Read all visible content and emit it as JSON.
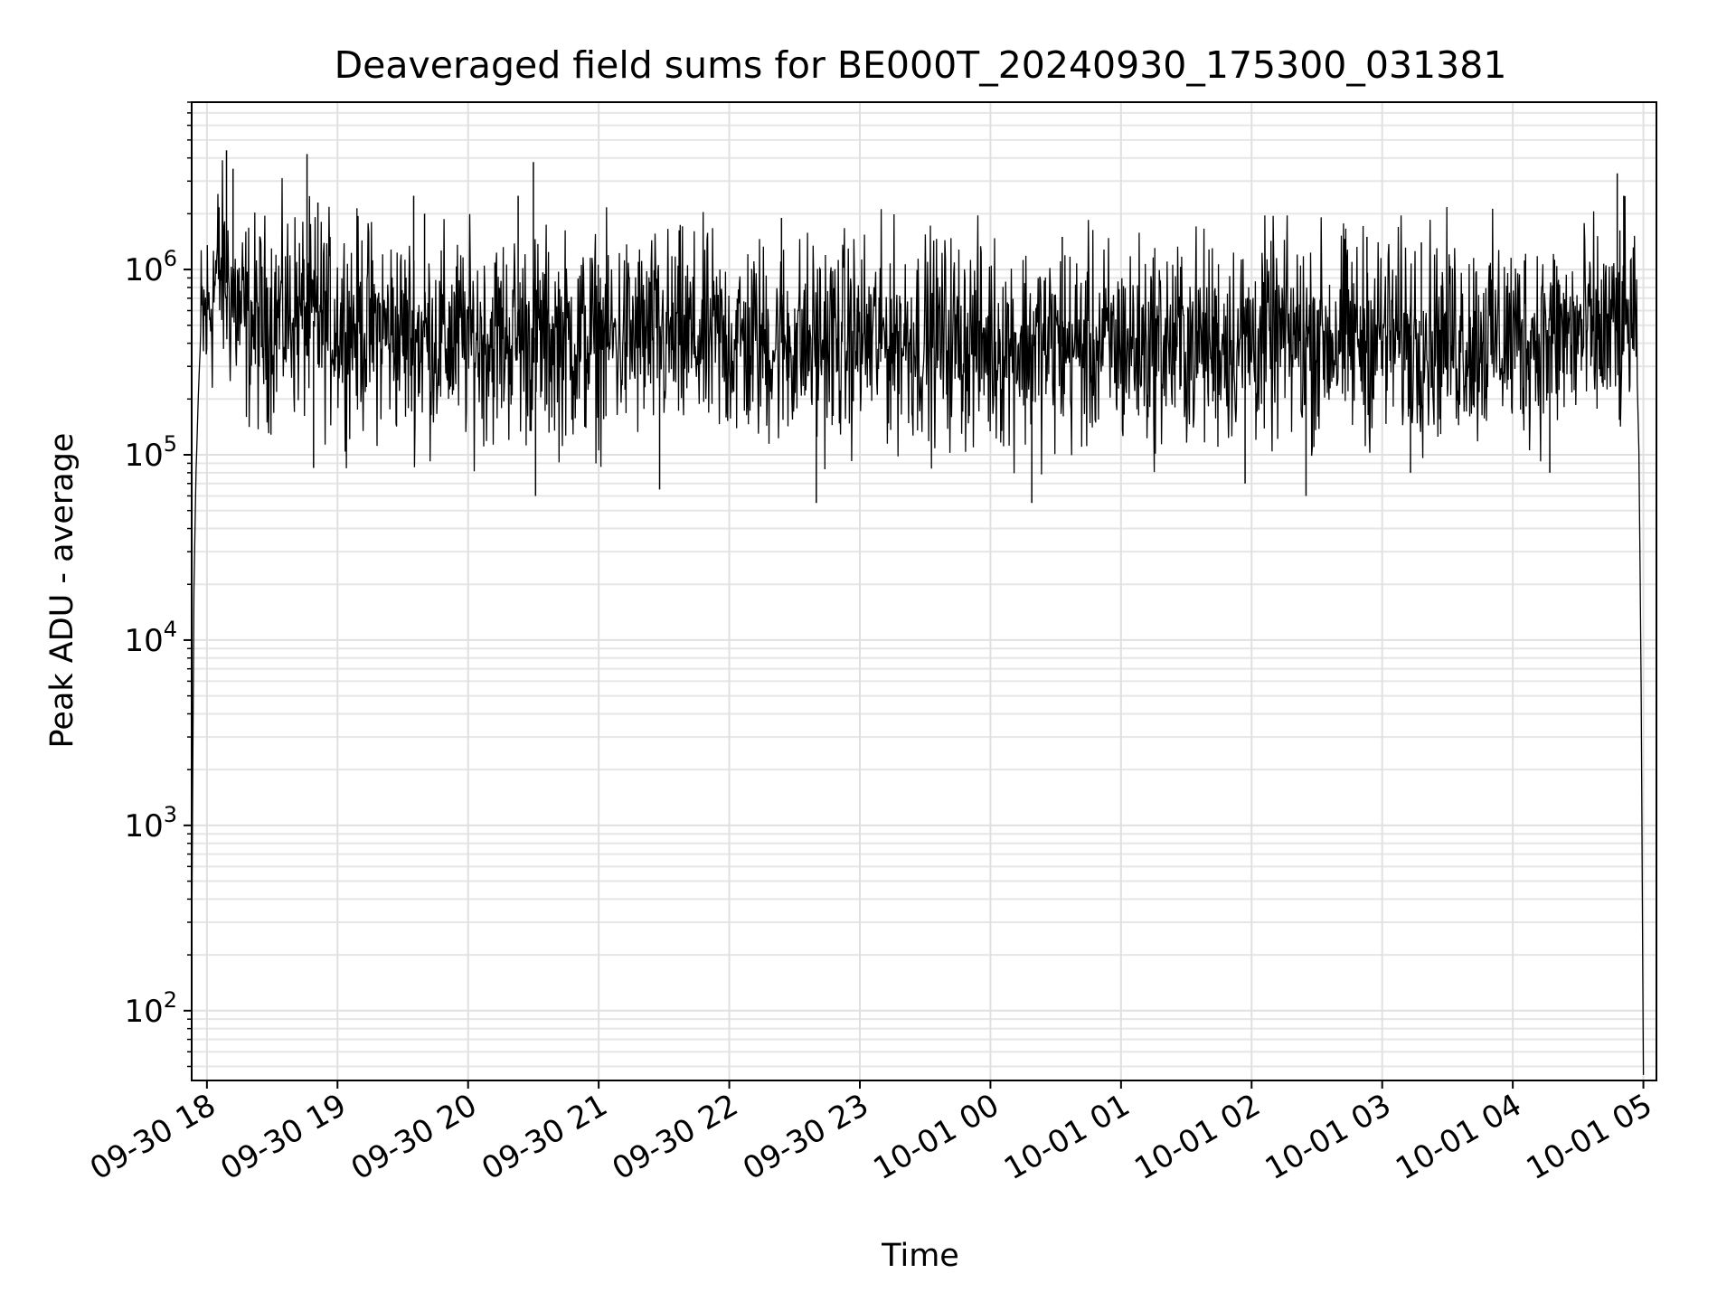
{
  "chart_data": {
    "type": "line",
    "title": "Deaveraged field sums for BE000T_20240930_175300_031381",
    "xlabel": "Time",
    "ylabel": "Peak ADU - average",
    "yscale": "log",
    "ylim": [
      42,
      8000000
    ],
    "xlim": [
      "2024-09-30 17:53",
      "2024-10-01 05:06"
    ],
    "grid": true,
    "x_ticks": [
      {
        "t": "2024-09-30 18:00",
        "label": "09-30 18"
      },
      {
        "t": "2024-09-30 19:00",
        "label": "09-30 19"
      },
      {
        "t": "2024-09-30 20:00",
        "label": "09-30 20"
      },
      {
        "t": "2024-09-30 21:00",
        "label": "09-30 21"
      },
      {
        "t": "2024-09-30 22:00",
        "label": "09-30 22"
      },
      {
        "t": "2024-09-30 23:00",
        "label": "09-30 23"
      },
      {
        "t": "2024-10-01 00:00",
        "label": "10-01 00"
      },
      {
        "t": "2024-10-01 01:00",
        "label": "10-01 01"
      },
      {
        "t": "2024-10-01 02:00",
        "label": "10-01 02"
      },
      {
        "t": "2024-10-01 03:00",
        "label": "10-01 03"
      },
      {
        "t": "2024-10-01 04:00",
        "label": "10-01 04"
      },
      {
        "t": "2024-10-01 05:00",
        "label": "10-01 05"
      }
    ],
    "y_ticks": [
      {
        "value": 100,
        "base": "10",
        "exp": "2"
      },
      {
        "value": 1000,
        "base": "10",
        "exp": "3"
      },
      {
        "value": 10000,
        "base": "10",
        "exp": "4"
      },
      {
        "value": 100000,
        "base": "10",
        "exp": "5"
      },
      {
        "value": 1000000,
        "base": "10",
        "exp": "6"
      }
    ],
    "series": [
      {
        "color": "#000000",
        "x": [
          "2024-09-30 17:53",
          "2024-09-30 17:54",
          "2024-09-30 17:55",
          "2024-09-30 17:56",
          "2024-09-30 17:57",
          "2024-09-30 17:58",
          "2024-09-30 18:00",
          "2024-09-30 18:02",
          "2024-09-30 18:04",
          "2024-09-30 18:06",
          "2024-09-30 18:08",
          "2024-09-30 18:10",
          "2024-09-30 18:12",
          "2024-09-30 18:14",
          "2024-09-30 18:16",
          "2024-09-30 18:20",
          "2024-09-30 18:25",
          "2024-09-30 18:30",
          "2024-09-30 18:40",
          "2024-09-30 18:45",
          "2024-09-30 18:50",
          "2024-09-30 19:00",
          "2024-09-30 19:10",
          "2024-09-30 19:20",
          "2024-09-30 19:30",
          "2024-09-30 19:40",
          "2024-09-30 19:50",
          "2024-09-30 20:00",
          "2024-09-30 20:10",
          "2024-09-30 20:20",
          "2024-09-30 20:30",
          "2024-09-30 20:40",
          "2024-09-30 20:50",
          "2024-09-30 21:00",
          "2024-09-30 21:20",
          "2024-09-30 21:40",
          "2024-09-30 22:00",
          "2024-09-30 22:20",
          "2024-09-30 22:40",
          "2024-09-30 23:00",
          "2024-09-30 23:20",
          "2024-09-30 23:40",
          "2024-10-01 00:00",
          "2024-10-01 00:20",
          "2024-10-01 00:40",
          "2024-10-01 01:00",
          "2024-10-01 01:20",
          "2024-10-01 01:40",
          "2024-10-01 02:00",
          "2024-10-01 02:20",
          "2024-10-01 02:40",
          "2024-10-01 03:00",
          "2024-10-01 03:20",
          "2024-10-01 03:40",
          "2024-10-01 04:00",
          "2024-10-01 04:20",
          "2024-10-01 04:40",
          "2024-10-01 04:50",
          "2024-10-01 04:53",
          "2024-10-01 04:55",
          "2024-10-01 04:57",
          "2024-10-01 04:58",
          "2024-10-01 04:59",
          "2024-10-01 05:00"
        ],
        "values": [
          200,
          18000,
          80000,
          200000,
          400000,
          500000,
          550000,
          700000,
          900000,
          1000000,
          900000,
          800000,
          700000,
          600000,
          550000,
          520000,
          500000,
          560000,
          580000,
          560000,
          520000,
          520000,
          500000,
          470000,
          450000,
          430000,
          420000,
          420000,
          430000,
          440000,
          430000,
          420000,
          410000,
          420000,
          430000,
          420000,
          410000,
          400000,
          410000,
          420000,
          430000,
          420000,
          400000,
          390000,
          380000,
          390000,
          400000,
          410000,
          420000,
          430000,
          430000,
          440000,
          440000,
          430000,
          430000,
          440000,
          450000,
          460000,
          500000,
          600000,
          300000,
          100000,
          5000,
          45
        ]
      }
    ],
    "spikes": [
      {
        "t": "2024-09-30 18:09",
        "y": 4400000
      },
      {
        "t": "2024-09-30 18:12",
        "y": 3500000
      },
      {
        "t": "2024-09-30 18:46",
        "y": 4200000
      },
      {
        "t": "2024-09-30 18:49",
        "y": 85000
      },
      {
        "t": "2024-09-30 18:51",
        "y": 2300000
      },
      {
        "t": "2024-09-30 19:35",
        "y": 2500000
      },
      {
        "t": "2024-09-30 19:40",
        "y": 2000000
      },
      {
        "t": "2024-09-30 20:23",
        "y": 2500000
      },
      {
        "t": "2024-09-30 20:30",
        "y": 3800000
      },
      {
        "t": "2024-09-30 20:31",
        "y": 60000
      },
      {
        "t": "2024-09-30 21:28",
        "y": 65000
      },
      {
        "t": "2024-09-30 22:24",
        "y": 1900000
      },
      {
        "t": "2024-09-30 22:40",
        "y": 55000
      },
      {
        "t": "2024-10-01 00:19",
        "y": 55000
      },
      {
        "t": "2024-10-01 00:33",
        "y": 1500000
      },
      {
        "t": "2024-10-01 01:57",
        "y": 70000
      },
      {
        "t": "2024-10-01 02:25",
        "y": 60000
      },
      {
        "t": "2024-10-01 02:53",
        "y": 1500000
      },
      {
        "t": "2024-10-01 03:13",
        "y": 80000
      },
      {
        "t": "2024-10-01 03:18",
        "y": 1400000
      },
      {
        "t": "2024-10-01 04:17",
        "y": 80000
      },
      {
        "t": "2024-10-01 04:48",
        "y": 3300000
      },
      {
        "t": "2024-10-01 04:51",
        "y": 2500000
      }
    ]
  }
}
